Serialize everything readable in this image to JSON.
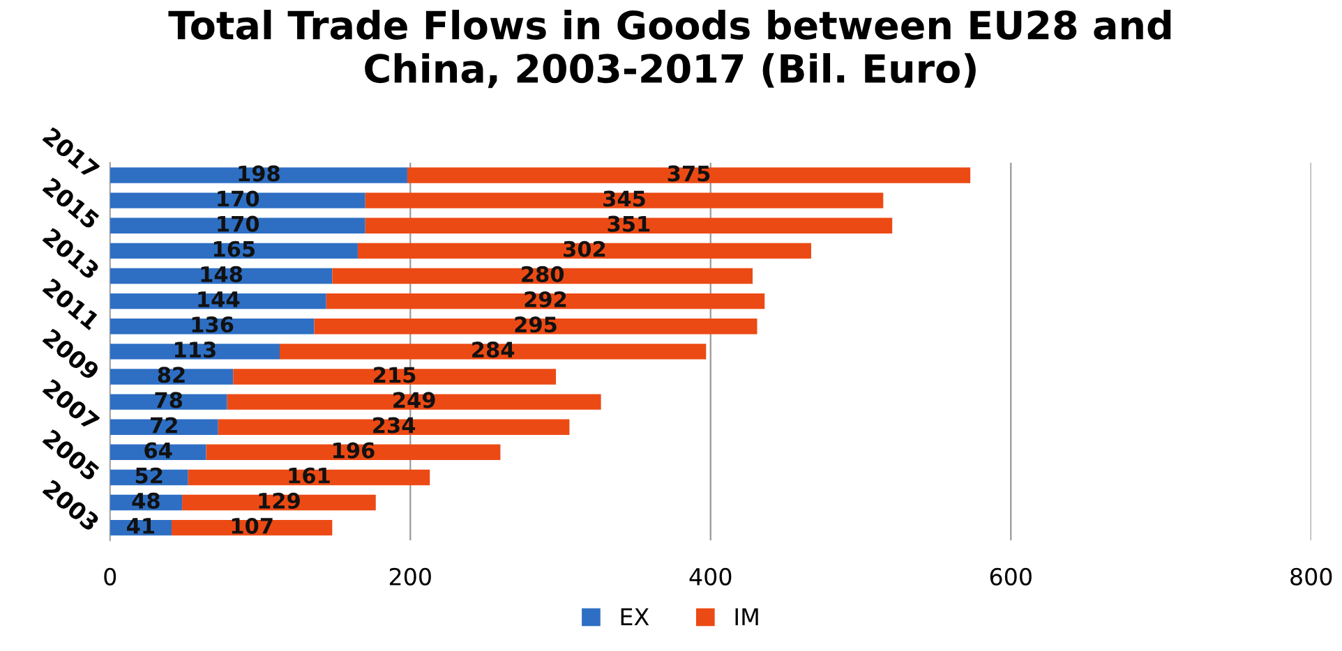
{
  "chart_data": {
    "type": "bar",
    "orientation": "horizontal",
    "stacked": true,
    "title": "Total Trade Flows in Goods between EU28 and\nChina, 2003-2017 (Bil. Euro)",
    "categories": [
      "2017",
      null,
      "2015",
      null,
      "2013",
      null,
      "2011",
      null,
      "2009",
      null,
      "2007",
      null,
      "2005",
      null,
      "2003"
    ],
    "series": [
      {
        "name": "EX",
        "color": "#2e6fc4",
        "values": [
          198,
          170,
          170,
          165,
          148,
          144,
          136,
          113,
          82,
          78,
          72,
          64,
          52,
          48,
          41
        ]
      },
      {
        "name": "IM",
        "color": "#ec4a14",
        "values": [
          375,
          345,
          351,
          302,
          280,
          292,
          295,
          284,
          215,
          249,
          234,
          196,
          161,
          129,
          107
        ]
      }
    ],
    "xlim": [
      0,
      800
    ],
    "xticks": [
      0,
      200,
      400,
      600,
      800
    ],
    "grid": "x",
    "legend": "bottom",
    "data_labels": true
  }
}
